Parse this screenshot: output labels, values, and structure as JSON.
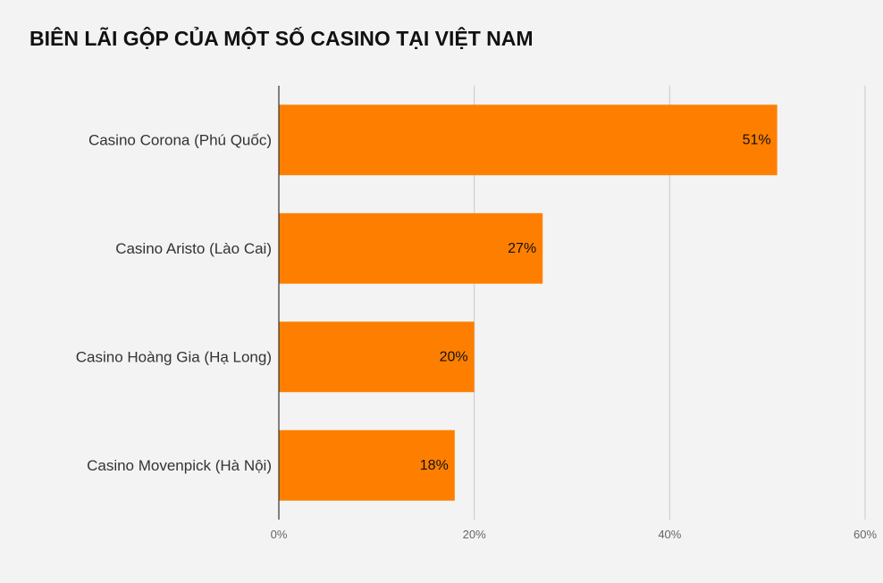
{
  "chart_data": {
    "type": "bar",
    "orientation": "horizontal",
    "title": "BIÊN LÃI GỘP CỦA MỘT SỐ CASINO TẠI VIỆT NAM",
    "categories": [
      "Casino Corona (Phú Quốc)",
      "Casino Aristo (Lào Cai)",
      "Casino Hoàng Gia (Hạ Long)",
      "Casino Movenpick (Hà Nội)"
    ],
    "values": [
      51,
      27,
      20,
      18
    ],
    "value_labels": [
      "51%",
      "27%",
      "20%",
      "18%"
    ],
    "xlim": [
      0,
      60
    ],
    "xticks": [
      0,
      20,
      40,
      60
    ],
    "xtick_labels": [
      "0%",
      "20%",
      "40%",
      "60%"
    ],
    "grid": true,
    "legend": "none",
    "bar_color": "#fe7f00",
    "grid_color": "#c8c8c8",
    "axis_color": "#333333"
  }
}
